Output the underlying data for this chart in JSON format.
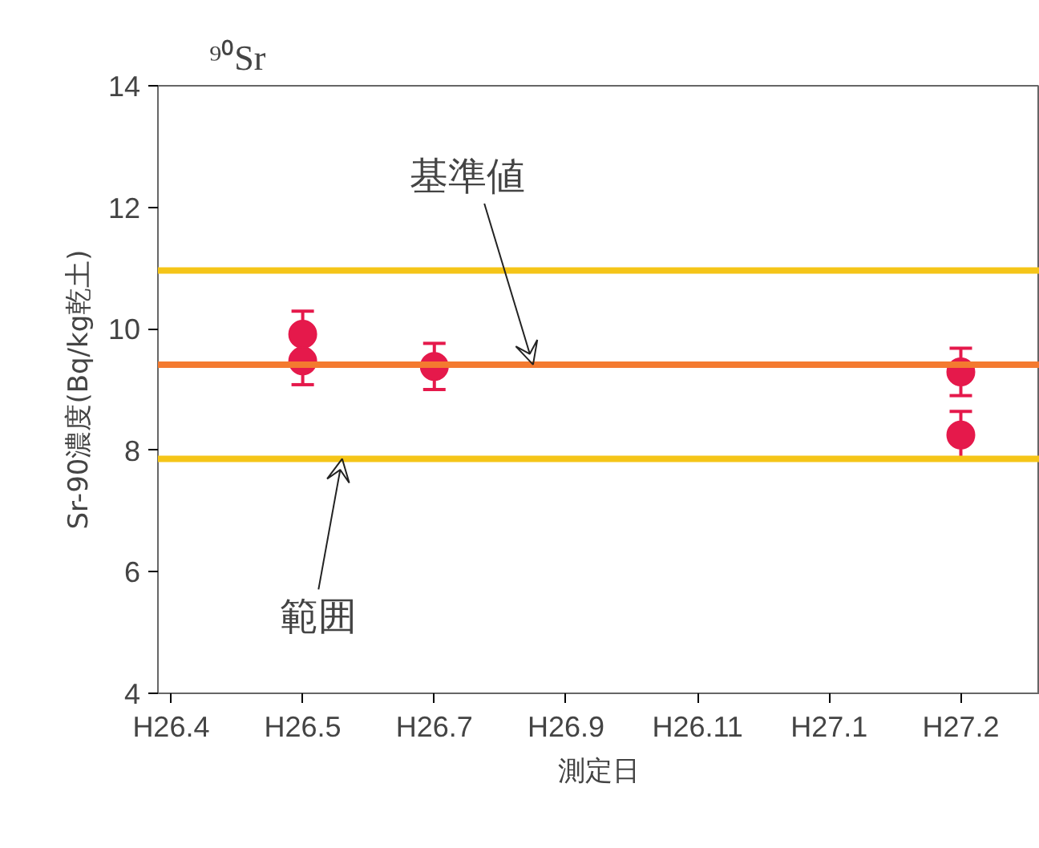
{
  "chart_data": {
    "type": "scatter",
    "title": "⁹⁰Sr",
    "xlabel": "測定日",
    "ylabel": "Sr-90濃度(Bq/kg乾土)",
    "categories": [
      "H26.4",
      "H26.5",
      "H26.7",
      "H26.9",
      "H26.11",
      "H27.1",
      "H27.2"
    ],
    "series": [
      {
        "x": [
          "H26.5",
          "H26.5",
          "H26.7",
          "H27.2",
          "H27.2"
        ],
        "values": [
          9.47,
          9.91,
          9.38,
          9.29,
          8.25
        ],
        "errors": [
          0.39,
          0.38,
          0.38,
          0.39,
          0.39
        ],
        "color": "#e5194b"
      }
    ],
    "marker": "circle",
    "ylim": [
      4,
      14
    ],
    "yticks": [
      4,
      6,
      8,
      10,
      12,
      14
    ],
    "ref_lines": [
      {
        "axis": "y",
        "value": 10.96,
        "color": "#f5c518"
      },
      {
        "axis": "y",
        "value": 9.41,
        "color": "#f47a30",
        "label": "基準値"
      },
      {
        "axis": "y",
        "value": 7.86,
        "color": "#f5c518",
        "label": "範囲"
      }
    ]
  }
}
